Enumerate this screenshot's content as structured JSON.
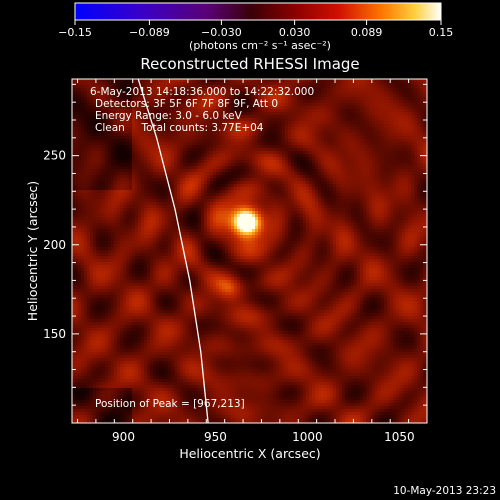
{
  "chart_data": {
    "type": "heatmap",
    "title": "Reconstructed RHESSI Image",
    "xlabel": "Heliocentric X (arcsec)",
    "ylabel": "Heliocentric Y (arcsec)",
    "xlim": [
      872,
      1065
    ],
    "ylim": [
      100,
      293
    ],
    "x_ticks": [
      {
        "value": 900,
        "label": "900"
      },
      {
        "value": 950,
        "label": "950"
      },
      {
        "value": 1000,
        "label": "1000"
      },
      {
        "value": 1050,
        "label": "1050"
      }
    ],
    "y_ticks": [
      {
        "value": 150,
        "label": "150"
      },
      {
        "value": 200,
        "label": "200"
      },
      {
        "value": 250,
        "label": "250"
      }
    ],
    "colorbar": {
      "range": [
        -0.15,
        0.15
      ],
      "ticks": [
        {
          "value": -0.15,
          "label": "−0.15"
        },
        {
          "value": -0.089,
          "label": "−0.089"
        },
        {
          "value": -0.03,
          "label": "−0.030"
        },
        {
          "value": 0.03,
          "label": "0.030"
        },
        {
          "value": 0.089,
          "label": "0.089"
        },
        {
          "value": 0.15,
          "label": "0.15"
        }
      ],
      "label": "(photons cm⁻² s⁻¹ asec⁻²)"
    },
    "annotations": [
      "6-May-2013 14:18:36.000 to 14:22:32.000",
      "Detectors: 3F 5F 6F 7F 8F 9F, Att 0",
      "Energy Range: 3.0 - 6.0 keV",
      "Clean     Total counts: 3.77E+04"
    ],
    "peak_text": "Position of Peak = [967,213]",
    "peak": {
      "x": 967,
      "y": 213
    },
    "sources": [
      {
        "x": 967,
        "y": 213,
        "amp": 1.0,
        "sigma": 7
      },
      {
        "x": 958,
        "y": 175,
        "amp": 0.28,
        "sigma": 5
      }
    ],
    "limb_curve": [
      [
        908,
        293
      ],
      [
        918,
        260
      ],
      [
        928,
        220
      ],
      [
        936,
        180
      ],
      [
        942,
        140
      ],
      [
        946,
        100
      ]
    ],
    "date_stamp": "10-May-2013 23:23"
  }
}
